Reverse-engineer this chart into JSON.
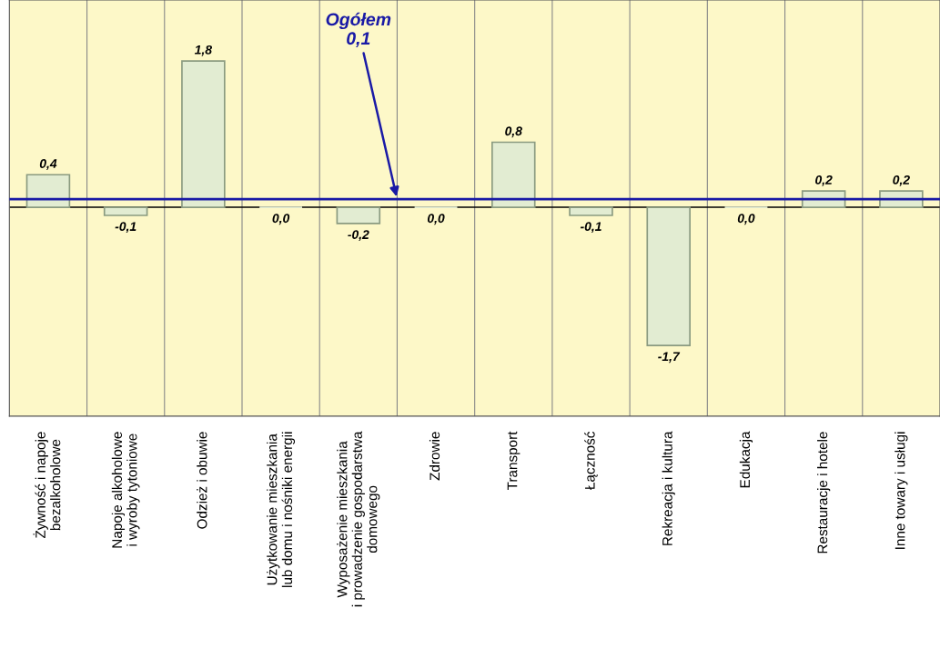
{
  "chart_data": {
    "type": "bar",
    "categories": [
      "Żywność i napoje\nbezalkoholowe",
      "Napoje alkoholowe\ni wyroby tytoniowe",
      "Odzież i obuwie",
      "Użytkowanie mieszkania\nlub domu i nośniki energii",
      "Wyposażenie mieszkania\ni prowadzenie gospodarstwa\ndomowego",
      "Zdrowie",
      "Transport",
      "Łączność",
      "Rekreacja i kultura",
      "Edukacja",
      "Restauracje i hotele",
      "Inne towary i usługi"
    ],
    "values": [
      0.4,
      -0.1,
      1.8,
      0.0,
      -0.2,
      0.0,
      0.8,
      -0.1,
      -1.7,
      0.0,
      0.2,
      0.2
    ],
    "value_labels": [
      "0,4",
      "-0,1",
      "1,8",
      "0,0",
      "-0,2",
      "0,0",
      "0,8",
      "-0,1",
      "-1,7",
      "0,0",
      "0,2",
      "0,2"
    ],
    "color": "#e2ecd2",
    "ylim": [
      -2.57,
      2.55
    ],
    "grid": "x",
    "ref_lines": [
      {
        "axis": "y",
        "value": 0.1,
        "label": "Ogółem\n0,1",
        "color": "#1a1aa6"
      }
    ]
  }
}
